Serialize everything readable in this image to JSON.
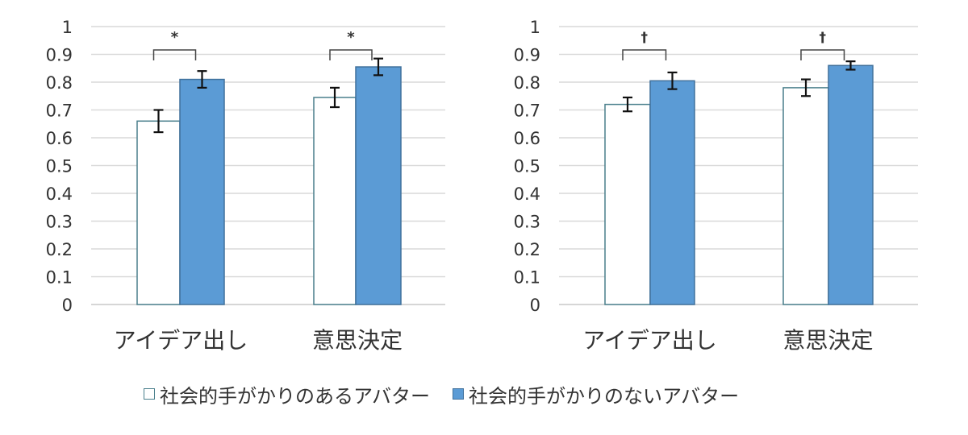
{
  "chart_data": [
    {
      "type": "bar",
      "title": "",
      "xlabel": "",
      "ylabel": "",
      "ylim": [
        0,
        1
      ],
      "yticks": [
        "0",
        "0.1",
        "0.2",
        "0.3",
        "0.4",
        "0.5",
        "0.6",
        "0.7",
        "0.8",
        "0.9",
        "1"
      ],
      "grid": true,
      "categories": [
        "アイデア出し",
        "意思決定"
      ],
      "series": [
        {
          "name": "社会的手がかりのあるアバター",
          "values": [
            0.66,
            0.745
          ],
          "errors": [
            0.04,
            0.035
          ],
          "color": "#ffffff",
          "border": "#4a7f8c"
        },
        {
          "name": "社会的手がかりのないアバター",
          "values": [
            0.81,
            0.855
          ],
          "errors": [
            0.03,
            0.03
          ],
          "color": "#5b9bd5",
          "border": "#41719c"
        }
      ],
      "annotations": [
        "*",
        "*"
      ]
    },
    {
      "type": "bar",
      "title": "",
      "xlabel": "",
      "ylabel": "",
      "ylim": [
        0,
        1
      ],
      "yticks": [
        "0",
        "0.1",
        "0.2",
        "0.3",
        "0.4",
        "0.5",
        "0.6",
        "0.7",
        "0.8",
        "0.9",
        "1"
      ],
      "grid": true,
      "categories": [
        "アイデア出し",
        "意思決定"
      ],
      "series": [
        {
          "name": "社会的手がかりのあるアバター",
          "values": [
            0.72,
            0.78
          ],
          "errors": [
            0.025,
            0.03
          ],
          "color": "#ffffff",
          "border": "#4a7f8c"
        },
        {
          "name": "社会的手がかりのないアバター",
          "values": [
            0.805,
            0.86
          ],
          "errors": [
            0.03,
            0.015
          ],
          "color": "#5b9bd5",
          "border": "#41719c"
        }
      ],
      "annotations": [
        "†",
        "†"
      ]
    }
  ],
  "legend": {
    "position": "bottom",
    "items": [
      {
        "label": "社会的手がかりのあるアバター",
        "swatch": "white"
      },
      {
        "label": "社会的手がかりのないアバター",
        "swatch": "blue"
      }
    ]
  }
}
